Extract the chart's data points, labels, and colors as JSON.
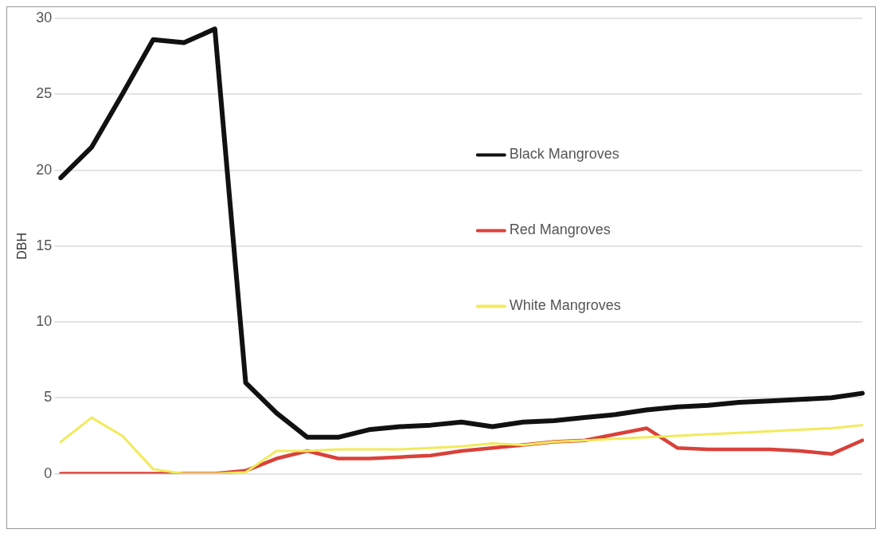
{
  "chart_data": {
    "type": "line",
    "ylabel": "DBH",
    "categories": [
      null,
      null,
      null,
      null,
      null,
      null,
      null,
      null,
      null,
      null,
      null,
      null,
      null,
      null,
      null,
      null,
      null,
      null,
      null,
      null,
      null,
      null,
      null,
      null,
      null,
      null,
      null
    ],
    "series": [
      {
        "name": "Black Mangroves",
        "color": "#111111",
        "values": [
          19.5,
          21.5,
          25,
          28.6,
          28.4,
          29.3,
          6.0,
          4.0,
          2.4,
          2.4,
          2.9,
          3.1,
          3.2,
          3.4,
          3.1,
          3.4,
          3.5,
          3.7,
          3.9,
          4.2,
          4.4,
          4.5,
          4.7,
          4.8,
          4.9,
          5.0,
          5.3
        ]
      },
      {
        "name": "Red Mangroves",
        "color": "#d9413a",
        "values": [
          0,
          0,
          0,
          0,
          0,
          0,
          0.2,
          1.0,
          1.5,
          1.0,
          1.0,
          1.1,
          1.2,
          1.5,
          1.7,
          1.9,
          2.1,
          2.2,
          2.6,
          3.0,
          1.7,
          1.6,
          1.6,
          1.6,
          1.5,
          1.3,
          2.2
        ]
      },
      {
        "name": "White Mangroves",
        "color": "#f2ea5a",
        "values": [
          2.1,
          3.7,
          2.5,
          0.3,
          0,
          0,
          0.1,
          1.5,
          1.5,
          1.6,
          1.6,
          1.6,
          1.7,
          1.8,
          2.0,
          1.9,
          2.1,
          2.2,
          2.3,
          2.4,
          2.5,
          2.6,
          2.7,
          2.8,
          2.9,
          3.0,
          3.2
        ]
      }
    ],
    "ylim": [
      0,
      30
    ],
    "yticks": [
      0,
      5,
      10,
      15,
      20,
      25,
      30
    ],
    "grid": "y",
    "legend": "top right",
    "marker": "none",
    "line_style": "solid"
  }
}
